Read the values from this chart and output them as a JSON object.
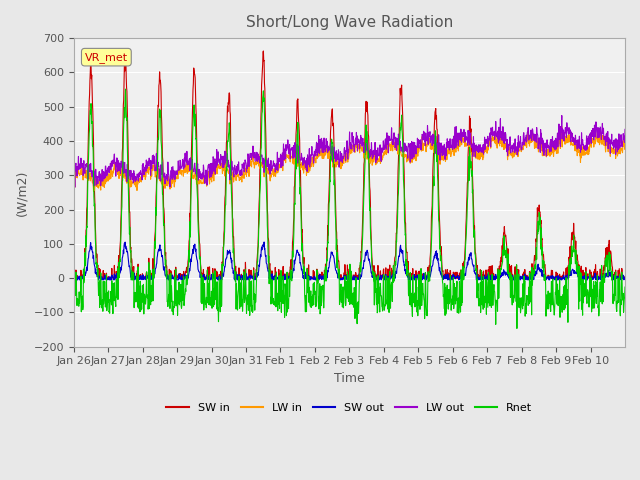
{
  "title": "Short/Long Wave Radiation",
  "xlabel": "Time",
  "ylabel": "(W/m2)",
  "ylim": [
    -200,
    700
  ],
  "yticks": [
    -200,
    -100,
    0,
    100,
    200,
    300,
    400,
    500,
    600,
    700
  ],
  "date_labels": [
    "Jan 26",
    "Jan 27",
    "Jan 28",
    "Jan 29",
    "Jan 30",
    "Jan 31",
    "Feb 1",
    "Feb 2",
    "Feb 3",
    "Feb 4",
    "Feb 5",
    "Feb 6",
    "Feb 7",
    "Feb 8",
    "Feb 9",
    "Feb 10"
  ],
  "colors": {
    "SW_in": "#cc0000",
    "LW_in": "#ff9900",
    "SW_out": "#0000cc",
    "LW_out": "#9900cc",
    "Rnet": "#00cc00"
  },
  "annotation_text": "VR_met",
  "annotation_color": "#cc0000",
  "annotation_bg": "#ffff99",
  "bg_color": "#e8e8e8",
  "plot_bg": "#f0f0f0",
  "grid_color": "#ffffff",
  "legend_labels": [
    "SW in",
    "LW in",
    "SW out",
    "LW out",
    "Rnet"
  ],
  "n_days": 16,
  "sw_peaks": [
    620,
    640,
    590,
    610,
    540,
    660,
    500,
    490,
    510,
    550,
    480,
    450,
    130,
    200,
    130,
    80
  ]
}
